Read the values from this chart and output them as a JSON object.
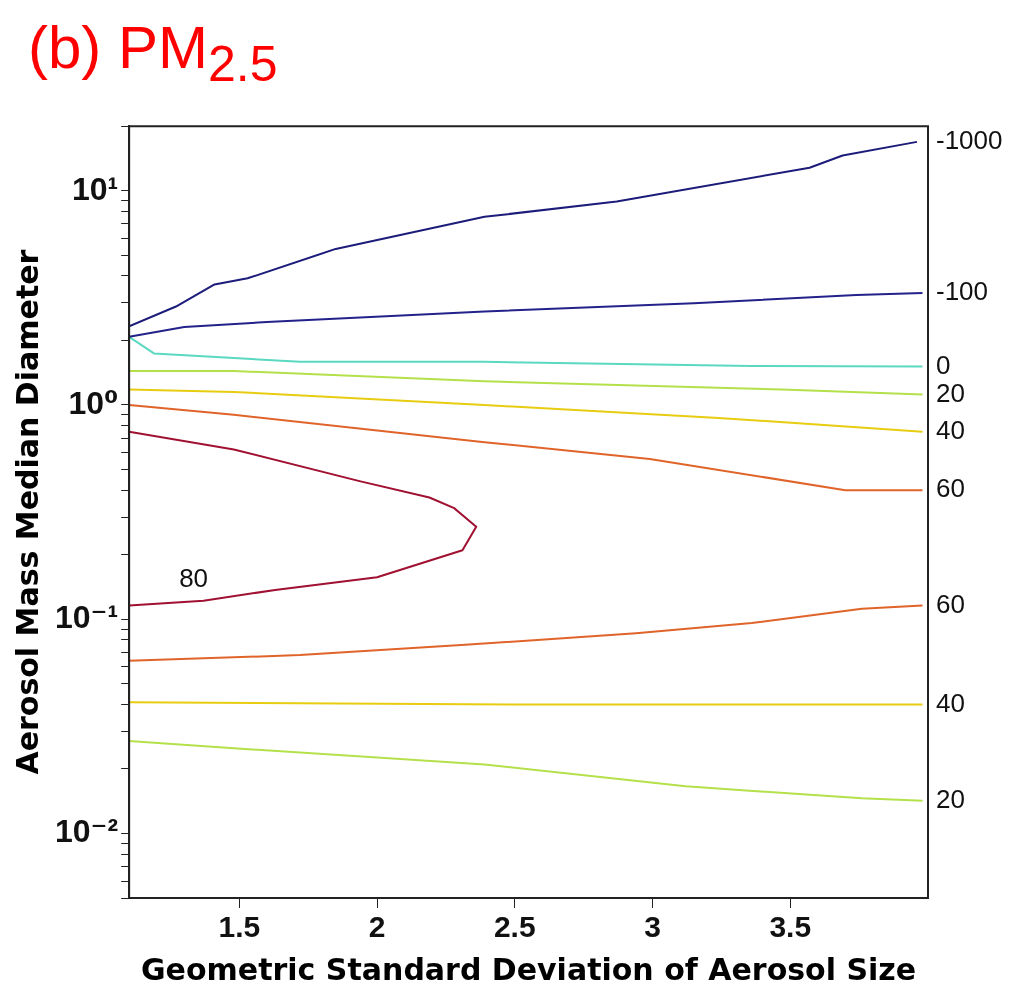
{
  "chart_data": {
    "type": "line",
    "title": "(b) PM$_{2.5}$",
    "xlabel": "Geometric Standard Deviation of Aerosol Size",
    "ylabel": "Aerosol Mass Median Diameter",
    "log": "y",
    "grid": false,
    "legend": false,
    "marker": "none",
    "line_style": "solid",
    "xlim": [
      1.1,
      4
    ],
    "xticks": [
      1.5,
      2,
      2.5,
      3,
      3.5
    ],
    "ylim": [
      0.005,
      20
    ],
    "yticks": [
      {
        "value": 0.005,
        "label": null
      },
      {
        "value": 0.006,
        "label": null
      },
      {
        "value": 0.007,
        "label": null
      },
      {
        "value": 0.008,
        "label": null
      },
      {
        "value": 0.009,
        "label": null
      },
      {
        "value": 0.01,
        "label": "10⁻²"
      },
      {
        "value": 0.02,
        "label": null
      },
      {
        "value": 0.03,
        "label": null
      },
      {
        "value": 0.04,
        "label": null
      },
      {
        "value": 0.05,
        "label": null
      },
      {
        "value": 0.06,
        "label": null
      },
      {
        "value": 0.07,
        "label": null
      },
      {
        "value": 0.08,
        "label": null
      },
      {
        "value": 0.09,
        "label": null
      },
      {
        "value": 0.1,
        "label": "10⁻¹"
      },
      {
        "value": 0.2,
        "label": null
      },
      {
        "value": 0.3,
        "label": null
      },
      {
        "value": 0.4,
        "label": null
      },
      {
        "value": 0.5,
        "label": null
      },
      {
        "value": 0.6,
        "label": null
      },
      {
        "value": 0.7,
        "label": null
      },
      {
        "value": 0.8,
        "label": null
      },
      {
        "value": 0.9,
        "label": null
      },
      {
        "value": 1,
        "label": "10⁰"
      },
      {
        "value": 2,
        "label": null
      },
      {
        "value": 3,
        "label": null
      },
      {
        "value": 4,
        "label": null
      },
      {
        "value": 5,
        "label": null
      },
      {
        "value": 6,
        "label": null
      },
      {
        "value": 7,
        "label": null
      },
      {
        "value": 8,
        "label": null
      },
      {
        "value": 9,
        "label": null
      },
      {
        "value": 10,
        "label": "10¹"
      },
      {
        "value": 20,
        "label": null
      }
    ],
    "series": [
      {
        "name": "-1000",
        "color": "#1c1c7a",
        "x": [
          1.1,
          1.27,
          1.41,
          1.53,
          1.85,
          2.39,
          2.87,
          3.57,
          3.69,
          3.96
        ],
        "values": [
          2.33,
          2.88,
          3.65,
          3.9,
          5.35,
          7.55,
          8.9,
          12.8,
          14.6,
          16.9
        ]
      },
      {
        "name": "-100",
        "color": "#22228a",
        "x": [
          1.1,
          1.3,
          1.6,
          2.39,
          3.15,
          3.74,
          3.98
        ],
        "values": [
          2.08,
          2.31,
          2.44,
          2.73,
          2.98,
          3.26,
          3.33
        ]
      },
      {
        "name": "0",
        "color": "#5ad8c0",
        "x": [
          1.1,
          1.19,
          1.72,
          2.39,
          3.36,
          3.98
        ],
        "values": [
          2.08,
          1.74,
          1.59,
          1.59,
          1.52,
          1.51
        ]
      },
      {
        "name": "20",
        "color": "#b4e04a",
        "x": [
          1.1,
          1.48,
          2.39,
          3.47,
          3.98
        ],
        "values": [
          1.44,
          1.44,
          1.29,
          1.18,
          1.12
        ]
      },
      {
        "name": "40",
        "color": "#e8cc10",
        "x": [
          1.1,
          1.48,
          2.39,
          3.24,
          3.98
        ],
        "values": [
          1.18,
          1.15,
          1.0,
          0.87,
          0.75
        ]
      },
      {
        "name": "60",
        "color": "#e0642a",
        "x": [
          1.1,
          1.48,
          2.39,
          2.99,
          3.7,
          3.98
        ],
        "values": [
          1.0,
          0.9,
          0.67,
          0.56,
          0.4,
          0.4
        ]
      },
      {
        "name": "80",
        "color": "#a01030",
        "x": [
          1.1,
          1.48,
          1.94,
          2.19,
          2.28,
          2.36,
          2.31,
          2.0,
          1.63,
          1.37,
          1.1
        ],
        "values": [
          0.75,
          0.62,
          0.44,
          0.37,
          0.33,
          0.27,
          0.21,
          0.157,
          0.137,
          0.122,
          0.116
        ]
      },
      {
        "name": "60",
        "color": "#e0642a",
        "x": [
          1.1,
          1.72,
          2.32,
          2.94,
          3.36,
          3.76,
          3.98
        ],
        "values": [
          0.064,
          0.068,
          0.076,
          0.086,
          0.096,
          0.112,
          0.116
        ]
      },
      {
        "name": "40",
        "color": "#e8cc10",
        "x": [
          1.1,
          2.5,
          3.98
        ],
        "values": [
          0.041,
          0.04,
          0.04
        ]
      },
      {
        "name": "20",
        "color": "#b4e04a",
        "x": [
          1.1,
          1.48,
          2.39,
          3.12,
          3.76,
          3.98
        ],
        "values": [
          0.027,
          0.025,
          0.021,
          0.0166,
          0.0146,
          0.0142
        ]
      }
    ]
  }
}
